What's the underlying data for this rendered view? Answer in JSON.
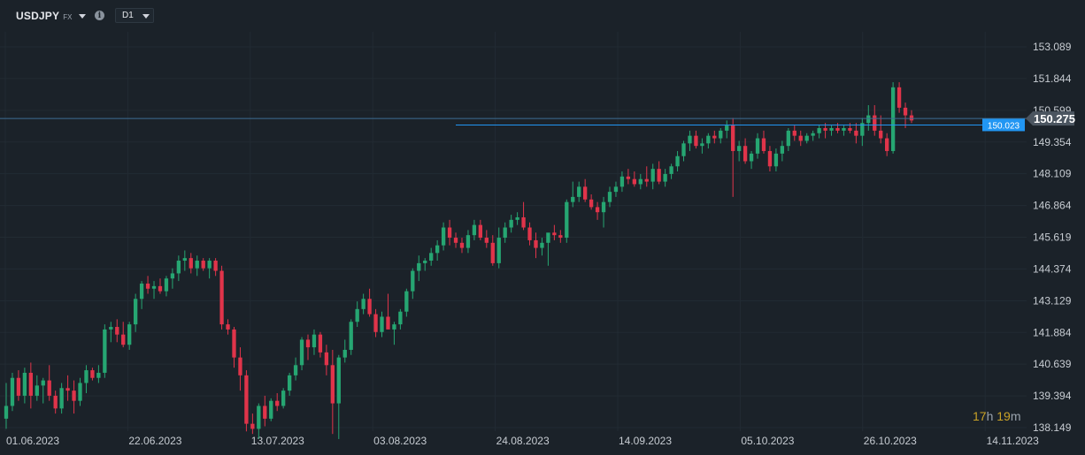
{
  "toolbar": {
    "symbol": "USDJPY",
    "symbol_class": "FX",
    "timeframe": "D1",
    "info_icon": "info-icon",
    "dropdown_icon": "chevron-down-icon"
  },
  "countdown": {
    "hours": "17",
    "h_unit": "h",
    "minutes": "19",
    "m_unit": "m"
  },
  "colors": {
    "background": "#1b2229",
    "bull": "#26a672",
    "bear": "#e0344a",
    "grid": "#222b33",
    "price_line": "#3d6d94",
    "bid_line": "#2196f3",
    "label_blue": "#2196f3",
    "label_grey": "#4b5560"
  },
  "chart_data": {
    "type": "candlestick",
    "symbol": "USDJPY",
    "timeframe": "D1",
    "y_ticks": [
      "153.089",
      "151.844",
      "150.599",
      "149.354",
      "148.109",
      "146.864",
      "145.619",
      "144.374",
      "143.129",
      "141.884",
      "140.639",
      "139.394",
      "138.149"
    ],
    "x_ticks": [
      "01.06.2023",
      "22.06.2023",
      "13.07.2023",
      "03.08.2023",
      "24.08.2023",
      "14.09.2023",
      "05.10.2023",
      "26.10.2023",
      "14.11.2023"
    ],
    "ylim": [
      138.149,
      153.089
    ],
    "current_price": 150.275,
    "bid_line_price": 150.023,
    "current_price_label": "150.275",
    "bid_line_label": "150.023",
    "grid": true,
    "candles": [
      [
        138.5,
        139.9,
        138.1,
        139.0
      ],
      [
        139.0,
        140.3,
        138.8,
        140.1
      ],
      [
        140.1,
        140.4,
        139.2,
        139.4
      ],
      [
        139.4,
        140.5,
        139.1,
        140.3
      ],
      [
        140.3,
        140.7,
        138.9,
        139.4
      ],
      [
        139.4,
        140.2,
        139.2,
        139.8
      ],
      [
        139.8,
        140.1,
        139.1,
        140.0
      ],
      [
        140.0,
        140.6,
        139.2,
        139.4
      ],
      [
        139.4,
        139.6,
        138.7,
        138.9
      ],
      [
        138.9,
        139.9,
        138.7,
        139.7
      ],
      [
        139.7,
        140.2,
        139.2,
        139.6
      ],
      [
        139.6,
        140.0,
        138.7,
        139.2
      ],
      [
        139.2,
        140.1,
        139.0,
        139.9
      ],
      [
        139.9,
        140.6,
        139.5,
        140.4
      ],
      [
        140.4,
        140.5,
        140.0,
        140.1
      ],
      [
        140.1,
        140.6,
        139.9,
        140.3
      ],
      [
        140.3,
        142.2,
        140.1,
        142.0
      ],
      [
        142.0,
        142.3,
        141.5,
        142.1
      ],
      [
        142.1,
        142.4,
        141.5,
        141.8
      ],
      [
        141.8,
        142.3,
        141.3,
        141.4
      ],
      [
        141.4,
        142.3,
        141.2,
        142.2
      ],
      [
        142.2,
        143.4,
        141.9,
        143.2
      ],
      [
        143.2,
        143.9,
        142.8,
        143.8
      ],
      [
        143.8,
        144.1,
        143.4,
        143.6
      ],
      [
        143.6,
        143.9,
        143.2,
        143.7
      ],
      [
        143.7,
        144.0,
        143.4,
        143.5
      ],
      [
        143.5,
        144.1,
        143.3,
        144.0
      ],
      [
        144.0,
        144.4,
        143.6,
        144.2
      ],
      [
        144.2,
        144.9,
        143.9,
        144.7
      ],
      [
        144.7,
        145.1,
        144.3,
        144.8
      ],
      [
        144.8,
        145.0,
        144.2,
        144.4
      ],
      [
        144.4,
        144.9,
        144.1,
        144.7
      ],
      [
        144.7,
        144.8,
        144.3,
        144.4
      ],
      [
        144.4,
        144.8,
        144.0,
        144.7
      ],
      [
        144.7,
        144.8,
        144.1,
        144.3
      ],
      [
        144.3,
        144.5,
        142.0,
        142.2
      ],
      [
        142.2,
        142.4,
        141.8,
        142.0
      ],
      [
        142.0,
        142.1,
        140.5,
        140.9
      ],
      [
        140.9,
        141.3,
        139.6,
        140.2
      ],
      [
        140.2,
        140.4,
        138.0,
        138.3
      ],
      [
        138.3,
        138.7,
        137.9,
        138.1
      ],
      [
        138.1,
        139.1,
        137.7,
        139.0
      ],
      [
        139.0,
        139.4,
        138.2,
        138.5
      ],
      [
        138.5,
        139.3,
        138.4,
        139.2
      ],
      [
        139.2,
        139.5,
        138.8,
        139.0
      ],
      [
        139.0,
        139.7,
        138.9,
        139.6
      ],
      [
        139.6,
        140.3,
        139.4,
        140.2
      ],
      [
        140.2,
        140.9,
        140.0,
        140.6
      ],
      [
        140.6,
        141.7,
        140.4,
        141.6
      ],
      [
        141.6,
        141.8,
        140.8,
        141.3
      ],
      [
        141.3,
        142.0,
        141.0,
        141.8
      ],
      [
        141.8,
        141.9,
        140.9,
        141.1
      ],
      [
        141.1,
        141.4,
        140.2,
        140.6
      ],
      [
        140.6,
        141.2,
        137.9,
        139.1
      ],
      [
        139.1,
        141.0,
        137.7,
        140.9
      ],
      [
        140.9,
        141.6,
        140.7,
        141.2
      ],
      [
        141.2,
        142.4,
        141.0,
        142.3
      ],
      [
        142.3,
        143.1,
        142.1,
        142.8
      ],
      [
        142.8,
        143.4,
        142.6,
        143.2
      ],
      [
        143.2,
        143.6,
        142.5,
        142.6
      ],
      [
        142.6,
        142.8,
        141.7,
        141.9
      ],
      [
        141.9,
        142.7,
        141.7,
        142.5
      ],
      [
        142.5,
        143.4,
        142.1,
        142.0
      ],
      [
        142.0,
        142.3,
        141.4,
        142.2
      ],
      [
        142.2,
        142.8,
        142.0,
        142.7
      ],
      [
        142.7,
        143.6,
        142.5,
        143.5
      ],
      [
        143.5,
        144.4,
        143.2,
        144.3
      ],
      [
        144.3,
        144.9,
        143.9,
        144.6
      ],
      [
        144.6,
        144.8,
        144.3,
        144.7
      ],
      [
        144.7,
        145.2,
        144.5,
        145.0
      ],
      [
        145.0,
        145.5,
        144.7,
        145.3
      ],
      [
        145.3,
        146.2,
        145.1,
        146.0
      ],
      [
        146.0,
        146.3,
        145.3,
        145.6
      ],
      [
        145.6,
        145.8,
        145.2,
        145.4
      ],
      [
        145.4,
        145.6,
        145.0,
        145.2
      ],
      [
        145.2,
        145.9,
        145.0,
        145.7
      ],
      [
        145.7,
        146.3,
        145.5,
        146.1
      ],
      [
        146.1,
        146.3,
        145.5,
        145.6
      ],
      [
        145.6,
        145.9,
        145.2,
        145.4
      ],
      [
        145.4,
        145.7,
        144.5,
        144.6
      ],
      [
        144.6,
        146.0,
        144.4,
        145.6
      ],
      [
        145.6,
        146.2,
        145.4,
        146.0
      ],
      [
        146.0,
        146.5,
        145.8,
        146.3
      ],
      [
        146.3,
        146.6,
        146.1,
        146.4
      ],
      [
        146.4,
        147.0,
        145.9,
        146.0
      ],
      [
        146.0,
        146.2,
        145.3,
        145.5
      ],
      [
        145.5,
        145.8,
        144.8,
        145.2
      ],
      [
        145.2,
        145.6,
        144.9,
        145.4
      ],
      [
        145.4,
        145.7,
        144.5,
        145.8
      ],
      [
        145.8,
        146.1,
        145.5,
        145.7
      ],
      [
        145.7,
        145.9,
        145.4,
        145.6
      ],
      [
        145.6,
        147.1,
        145.4,
        147.0
      ],
      [
        147.0,
        147.8,
        146.8,
        147.2
      ],
      [
        147.2,
        147.8,
        147.0,
        147.6
      ],
      [
        147.6,
        147.9,
        147.0,
        147.1
      ],
      [
        147.1,
        147.3,
        146.7,
        146.8
      ],
      [
        146.8,
        147.0,
        146.3,
        146.6
      ],
      [
        146.6,
        147.2,
        146.0,
        147.0
      ],
      [
        147.0,
        147.6,
        146.8,
        147.4
      ],
      [
        147.4,
        147.8,
        147.2,
        147.6
      ],
      [
        147.6,
        148.2,
        147.4,
        148.0
      ],
      [
        148.0,
        148.3,
        147.7,
        147.9
      ],
      [
        147.9,
        148.2,
        147.6,
        147.7
      ],
      [
        147.7,
        148.1,
        147.5,
        147.9
      ],
      [
        147.9,
        148.4,
        147.6,
        147.8
      ],
      [
        147.8,
        148.5,
        147.5,
        148.3
      ],
      [
        148.3,
        148.6,
        147.7,
        147.8
      ],
      [
        147.8,
        148.3,
        147.6,
        148.1
      ],
      [
        148.1,
        148.5,
        147.9,
        148.4
      ],
      [
        148.4,
        149.0,
        148.2,
        148.8
      ],
      [
        148.8,
        149.4,
        148.6,
        149.3
      ],
      [
        149.3,
        149.8,
        149.0,
        149.6
      ],
      [
        149.6,
        149.8,
        149.1,
        149.2
      ],
      [
        149.2,
        149.5,
        148.9,
        149.3
      ],
      [
        149.3,
        149.7,
        149.1,
        149.6
      ],
      [
        149.6,
        149.8,
        149.3,
        149.5
      ],
      [
        149.5,
        149.9,
        149.3,
        149.8
      ],
      [
        149.8,
        150.2,
        149.5,
        150.0
      ],
      [
        150.0,
        150.3,
        147.2,
        149.0
      ],
      [
        149.0,
        149.4,
        148.6,
        149.2
      ],
      [
        149.2,
        149.5,
        148.5,
        148.6
      ],
      [
        148.6,
        149.0,
        148.3,
        148.9
      ],
      [
        148.9,
        149.7,
        148.7,
        149.5
      ],
      [
        149.5,
        149.8,
        148.9,
        149.0
      ],
      [
        149.0,
        149.2,
        148.2,
        148.4
      ],
      [
        148.4,
        149.1,
        148.2,
        148.9
      ],
      [
        148.9,
        149.4,
        148.6,
        149.2
      ],
      [
        149.2,
        149.9,
        149.0,
        149.8
      ],
      [
        149.8,
        150.0,
        149.4,
        149.6
      ],
      [
        149.6,
        149.8,
        149.2,
        149.4
      ],
      [
        149.4,
        149.7,
        149.3,
        149.6
      ],
      [
        149.6,
        149.8,
        149.4,
        149.7
      ],
      [
        149.7,
        150.0,
        149.5,
        149.9
      ],
      [
        149.9,
        150.1,
        149.5,
        149.8
      ],
      [
        149.8,
        150.0,
        149.6,
        149.9
      ],
      [
        149.9,
        150.1,
        149.7,
        149.8
      ],
      [
        149.8,
        150.0,
        149.6,
        149.9
      ],
      [
        149.9,
        150.1,
        149.7,
        149.8
      ],
      [
        149.8,
        150.1,
        149.3,
        149.6
      ],
      [
        149.6,
        150.3,
        149.2,
        150.1
      ],
      [
        150.1,
        150.8,
        149.8,
        150.4
      ],
      [
        150.4,
        150.8,
        149.6,
        149.8
      ],
      [
        149.8,
        150.4,
        149.3,
        149.5
      ],
      [
        149.5,
        149.7,
        148.8,
        149.0
      ],
      [
        149.0,
        151.7,
        148.9,
        151.5
      ],
      [
        151.5,
        151.7,
        150.5,
        150.7
      ],
      [
        150.7,
        150.9,
        149.9,
        150.4
      ],
      [
        150.4,
        150.6,
        150.1,
        150.2
      ]
    ]
  }
}
